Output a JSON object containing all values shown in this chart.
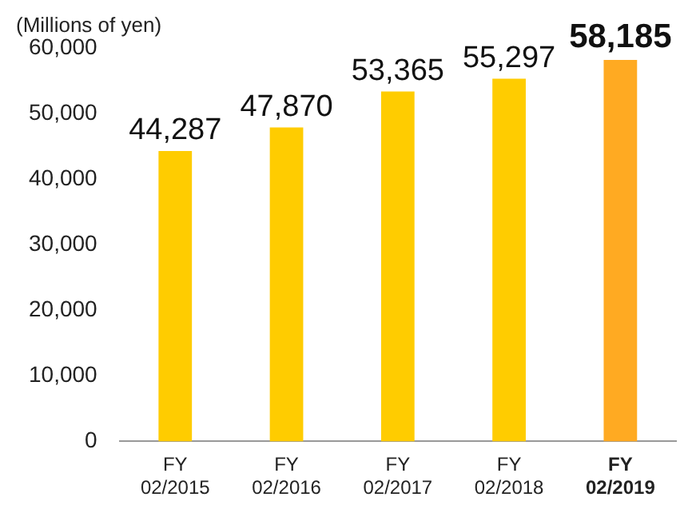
{
  "chart_data": {
    "type": "bar",
    "ylabel": "(Millions of yen)",
    "categories": [
      "FY 02/2015",
      "FY 02/2016",
      "FY 02/2017",
      "FY 02/2018",
      "FY 02/2019"
    ],
    "values": [
      44287,
      47870,
      53365,
      55297,
      58185
    ],
    "value_labels": [
      "44,287",
      "47,870",
      "53,365",
      "55,297",
      "58,185"
    ],
    "colors": [
      "#ffcc00",
      "#ffcc00",
      "#ffcc00",
      "#ffcc00",
      "#ffaa22"
    ],
    "ylim": [
      0,
      60000
    ],
    "yticks": [
      0,
      {
        "value": 10000,
        "label": "10,000"
      },
      {
        "value": 20000,
        "label": "20,000"
      },
      {
        "value": 30000,
        "label": "30,000"
      },
      {
        "value": 40000,
        "label": "40,000"
      },
      {
        "value": 50000,
        "label": "50,000"
      },
      {
        "value": 60000,
        "label": "60,000"
      }
    ],
    "grid": false,
    "legend": false
  }
}
